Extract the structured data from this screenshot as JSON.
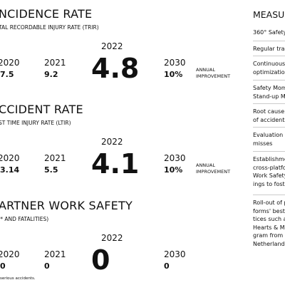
{
  "sections": [
    {
      "title": "NCIDENCE RATE",
      "subtitle": "TAL RECORDABLE INJURY RATE (TRIR)",
      "years": [
        {
          "year": "2020",
          "value": "7.5"
        },
        {
          "year": "2021",
          "value": "9.2"
        },
        {
          "year": "2022",
          "value": "4.8"
        },
        {
          "year": "2030",
          "value": "10%"
        }
      ],
      "note": [
        "ANNUAL",
        "IMPROVEMENT"
      ]
    },
    {
      "title": "CCIDENT RATE",
      "subtitle": "ST TIME INJURY RATE (LTIR)",
      "years": [
        {
          "year": "2020",
          "value": "3.14"
        },
        {
          "year": "2021",
          "value": "5.5"
        },
        {
          "year": "2022",
          "value": "4.1"
        },
        {
          "year": "2030",
          "value": "10%"
        }
      ],
      "note": [
        "ANNUAL",
        "IMPROVEMENT"
      ]
    },
    {
      "title": "ARTNER WORK SAFETY",
      "subtitle": "I* AND FATALITIES)",
      "years": [
        {
          "year": "2020",
          "value": "0"
        },
        {
          "year": "2021",
          "value": "0"
        },
        {
          "year": "2022",
          "value": "0"
        },
        {
          "year": "2030",
          "value": "0"
        }
      ]
    }
  ],
  "footnote": "serious accidents.",
  "measures": {
    "title": "MEASUR",
    "items": [
      [
        "360° Safety"
      ],
      [
        "Regular tra"
      ],
      [
        "Continuous",
        "optimization"
      ],
      [
        "Safety Mom",
        "Stand-up M"
      ],
      [
        "Root cause",
        "of accidents"
      ],
      [
        "Evaluation of",
        "misses"
      ],
      [
        "Establishme",
        "cross-platfo",
        "Work Safety",
        "ings to foste"
      ],
      [
        "Roll-out of p",
        "forms' best",
        "tices such a",
        "Hearts & Mi",
        "gram from l",
        "Netherlands"
      ]
    ]
  }
}
